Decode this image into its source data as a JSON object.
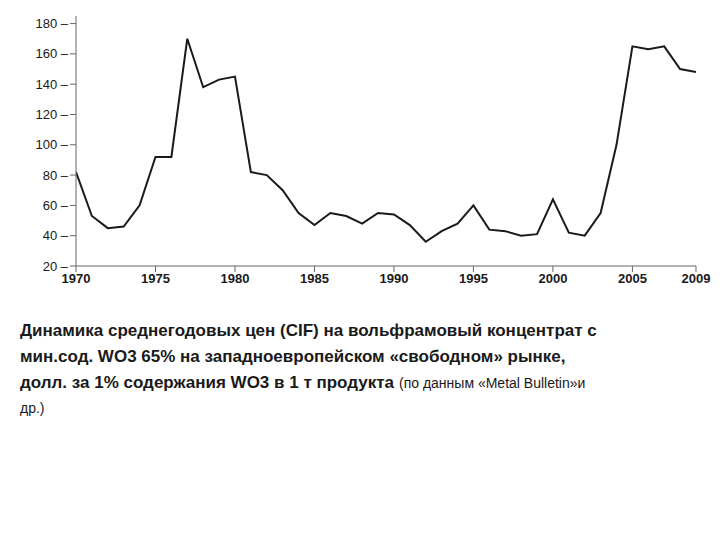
{
  "chart_data": {
    "type": "line",
    "title": "Динамика среднегодовых цен (СIF) на вольфрамовый концентрат с\nмин.сод. WO3 65% на западноевропейском «свободном» рынке,\nдолл. за 1% содержания WO3 в 1 т продукта",
    "subtitle": "(по данным «Metal Bulletin»и\nдр.)",
    "x": [
      1970,
      1971,
      1972,
      1973,
      1974,
      1975,
      1976,
      1977,
      1978,
      1979,
      1980,
      1981,
      1982,
      1983,
      1984,
      1985,
      1986,
      1987,
      1988,
      1989,
      1990,
      1991,
      1992,
      1993,
      1994,
      1995,
      1996,
      1997,
      1998,
      1999,
      2000,
      2001,
      2002,
      2003,
      2004,
      2005,
      2006,
      2007,
      2008,
      2009
    ],
    "values": [
      82,
      53,
      45,
      46,
      60,
      92,
      92,
      170,
      138,
      143,
      145,
      82,
      80,
      70,
      55,
      47,
      55,
      53,
      48,
      55,
      54,
      47,
      36,
      43,
      48,
      60,
      44,
      43,
      40,
      41,
      64,
      42,
      40,
      55,
      100,
      165,
      163,
      165,
      150,
      148
    ],
    "color": "#1a1a1a",
    "xlim": [
      1970,
      2009
    ],
    "xticks": [
      1970,
      1975,
      1980,
      1985,
      1990,
      1995,
      2000,
      2005,
      2009
    ],
    "ylim": [
      20,
      185
    ],
    "yticks": [
      {
        "value": 20,
        "label": "20 –"
      },
      {
        "value": 40,
        "label": "40 –"
      },
      {
        "value": 60,
        "label": "60 –"
      },
      {
        "value": 80,
        "label": "80 –"
      },
      {
        "value": 100,
        "label": "100 –"
      },
      {
        "value": 120,
        "label": "120 –"
      },
      {
        "value": 140,
        "label": "140 –"
      },
      {
        "value": 160,
        "label": "160 –"
      },
      {
        "value": 180,
        "label": "180 –"
      }
    ],
    "grid": false
  }
}
